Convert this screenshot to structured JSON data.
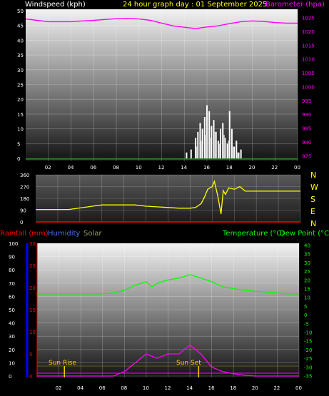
{
  "title": "24 hour graph day : 01 September 2025",
  "wind_label": "Windspeed (kph)",
  "baro_label": "Barometer (hpa)",
  "rain_label": "Rainfall (mm)",
  "hum_label": "Humidity",
  "solar_label": "Solar",
  "temp_label": "Temperature (°C)",
  "dew_label": "Dew Point (°C)",
  "sunrise_label": "Sun Rise",
  "sunset_label": "Sun Set",
  "colors": {
    "wind": "#ffffff",
    "gust": "#c0c0c0",
    "baro": "#ff00ff",
    "dir": "#ffff00",
    "rain": "#ff0000",
    "humidity": "#0000ff",
    "temp": "#00ff00",
    "solar": "#ff00ff",
    "sun_marker": "#ffcc00",
    "tick_left": "#ffffff",
    "grid": "#ffffff"
  },
  "chart_data": [
    {
      "type": "bar",
      "name": "windspeed-barometer",
      "x_ticks": [
        "02",
        "04",
        "06",
        "08",
        "10",
        "12",
        "14",
        "16",
        "18",
        "20",
        "22",
        "00"
      ],
      "y_left_ticks": [
        0,
        5,
        10,
        15,
        20,
        25,
        30,
        35,
        40,
        45,
        50
      ],
      "y_left_range": [
        0,
        50
      ],
      "y_right_ticks": [
        975,
        980,
        985,
        990,
        995,
        1000,
        1005,
        1010,
        1015,
        1020,
        1025
      ],
      "y_right_range": [
        973,
        1028
      ],
      "hours_range": [
        0,
        24
      ],
      "barometer": {
        "hours": [
          0,
          1,
          2,
          3,
          4,
          5,
          6,
          7,
          8,
          9,
          10,
          11,
          12,
          13,
          14,
          15,
          16,
          17,
          18,
          19,
          20,
          21,
          22,
          23,
          24
        ],
        "values": [
          1024.5,
          1024,
          1023.5,
          1023.5,
          1023.5,
          1023.8,
          1024,
          1024.3,
          1024.6,
          1024.7,
          1024.5,
          1024,
          1023,
          1022,
          1021.5,
          1021,
          1021.6,
          1022,
          1022.8,
          1023.5,
          1023.8,
          1023.6,
          1023.2,
          1023,
          1023
        ]
      },
      "wind": {
        "hours": [
          14.2,
          14.4,
          14.6,
          14.8,
          15,
          15.2,
          15.4,
          15.6,
          15.8,
          16,
          16.2,
          16.4,
          16.6,
          16.8,
          17,
          17.2,
          17.4,
          17.6,
          17.8,
          18,
          18.2,
          18.4,
          18.6,
          18.8,
          19,
          19.2
        ],
        "values": [
          2,
          0,
          3,
          0,
          7,
          9,
          12,
          10,
          14,
          18,
          16,
          11,
          13,
          9,
          6,
          10,
          12,
          7,
          5,
          16,
          10,
          4,
          6,
          2,
          3,
          0
        ]
      },
      "gust": {
        "hours": [
          15.1,
          15.5,
          15.9,
          16.3,
          16.7,
          17.1,
          17.5,
          17.9,
          18.3,
          18.7
        ],
        "values": [
          4,
          6,
          8,
          7,
          9,
          5,
          8,
          6,
          4,
          2
        ]
      }
    },
    {
      "type": "line",
      "name": "wind-direction",
      "y_ticks": [
        0,
        90,
        180,
        270,
        360
      ],
      "y_range": [
        0,
        360
      ],
      "direction_labels": [
        "N",
        "W",
        "S",
        "E",
        "N"
      ],
      "hours": [
        0,
        3,
        6,
        9,
        10,
        11,
        12,
        13,
        14,
        14.5,
        15,
        15.3,
        15.6,
        16,
        16.2,
        16.5,
        16.8,
        17,
        17.2,
        17.5,
        18,
        18.5,
        19,
        20,
        22,
        24
      ],
      "values": [
        95,
        95,
        130,
        130,
        120,
        115,
        110,
        105,
        105,
        110,
        140,
        190,
        250,
        270,
        310,
        200,
        60,
        240,
        210,
        260,
        250,
        270,
        235,
        235,
        235,
        235
      ]
    },
    {
      "type": "line",
      "name": "temperature-solar-humidity",
      "x_ticks": [
        "02",
        "04",
        "06",
        "08",
        "10",
        "12",
        "14",
        "16",
        "18",
        "20",
        "22",
        "00"
      ],
      "y_left1_ticks": [
        0,
        5,
        10,
        15,
        20,
        25,
        30
      ],
      "y_left1_range": [
        0,
        30
      ],
      "y_left2_ticks": [
        0,
        10,
        20,
        30,
        40,
        50,
        60,
        70,
        80,
        90,
        100
      ],
      "y_left2_range": [
        0,
        100
      ],
      "y_right_ticks": [
        40,
        35,
        30,
        25,
        20,
        15,
        10,
        5,
        0,
        -5,
        -10,
        -15,
        -20,
        -25,
        -30,
        -35
      ],
      "y_right_range": [
        -36,
        41
      ],
      "temperature": {
        "hours": [
          0,
          2,
          4,
          6,
          7,
          8,
          9,
          10,
          10.5,
          11,
          12,
          13,
          14,
          14.5,
          15,
          16,
          17,
          18,
          19,
          20,
          21,
          22,
          23,
          24
        ],
        "values": [
          12,
          12,
          12,
          12,
          12.5,
          14,
          17,
          19,
          16,
          18,
          20,
          21,
          23,
          22,
          21,
          19,
          16,
          15,
          14,
          13.5,
          13,
          12.5,
          12,
          12
        ]
      },
      "solar": {
        "hours": [
          0,
          7,
          8,
          9,
          10,
          11,
          12,
          13,
          14,
          15,
          16,
          17,
          18,
          19,
          20,
          21,
          22,
          23,
          24
        ],
        "values": [
          0,
          0,
          1,
          3,
          5,
          4,
          5,
          5,
          7,
          5,
          2,
          1,
          0.5,
          0.2,
          0,
          0,
          0,
          0,
          0
        ]
      },
      "sunrise_hour": 2.5,
      "sunset_hour": 14.8
    }
  ]
}
